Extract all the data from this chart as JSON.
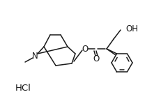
{
  "bg_color": "#ffffff",
  "line_color": "#1a1a1a",
  "line_width": 1.1,
  "font_size_label": 7.5,
  "hcl_label": "HCl",
  "oh_label": "OH",
  "o_ester": "O",
  "o_carbonyl": "O",
  "n_label": "N",
  "figsize": [
    2.32,
    1.52
  ],
  "dpi": 100
}
